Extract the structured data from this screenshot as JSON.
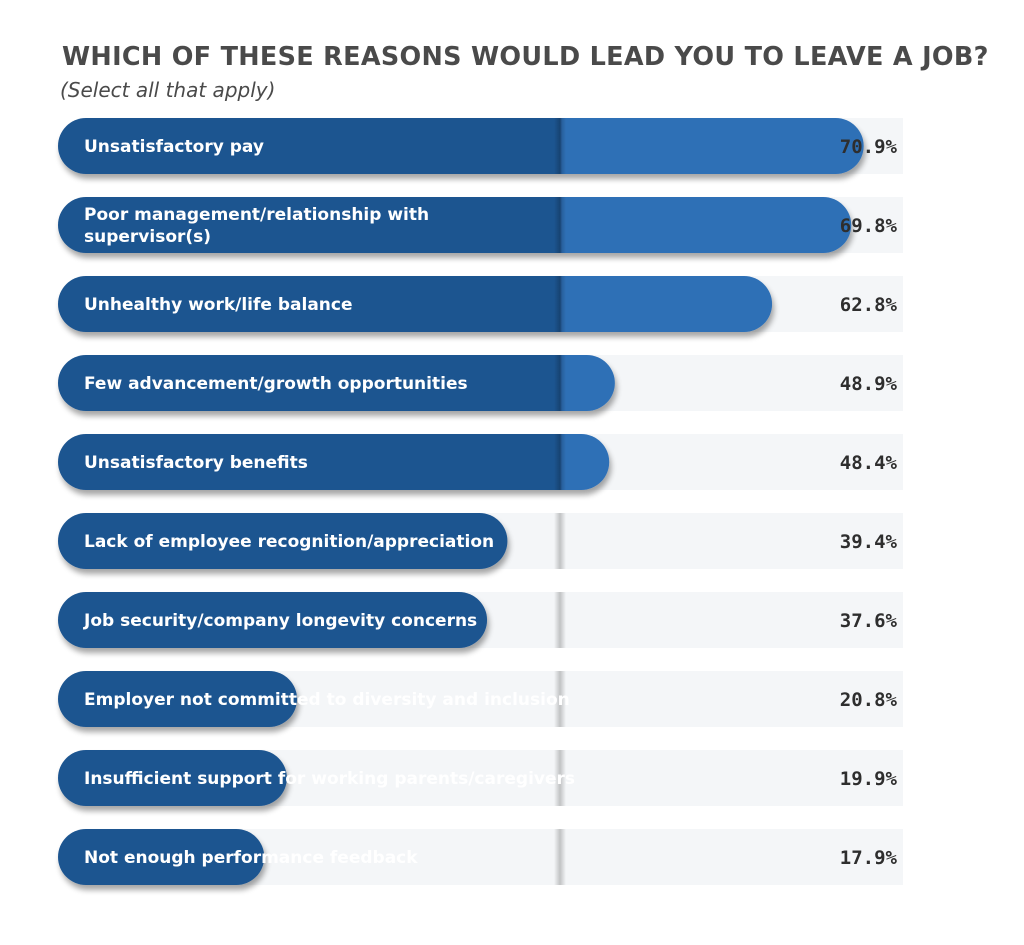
{
  "chart_data": {
    "type": "bar",
    "orientation": "horizontal",
    "title": "WHICH OF THESE REASONS WOULD LEAD YOU TO LEAVE A JOB?",
    "subtitle": "(Select all that apply)",
    "categories": [
      [
        "Unsatisfactory pay"
      ],
      [
        "Poor management/relationship with",
        "supervisor(s)"
      ],
      [
        "Unhealthy work/life balance"
      ],
      [
        "Few advancement/growth opportunities"
      ],
      [
        "Unsatisfactory benefits"
      ],
      [
        "Lack of employee recognition/appreciation"
      ],
      [
        "Job security/company longevity concerns"
      ],
      [
        "Employer not committed to diversity and inclusion"
      ],
      [
        "Insufficient support for working parents/caregivers"
      ],
      [
        "Not enough performance feedback"
      ]
    ],
    "values": [
      70.9,
      69.8,
      62.8,
      48.9,
      48.4,
      39.4,
      37.6,
      20.8,
      19.9,
      17.9
    ],
    "value_labels": [
      "70.9%",
      "69.8%",
      "62.8%",
      "48.9%",
      "48.4%",
      "39.4%",
      "37.6%",
      "20.8%",
      "19.9%",
      "17.9%"
    ],
    "colors": {
      "bar_dark": "#1e5590",
      "bar_light": "#2f6fb6",
      "row_background": "#f4f6f8",
      "value_text": "#2e2e2e"
    }
  }
}
